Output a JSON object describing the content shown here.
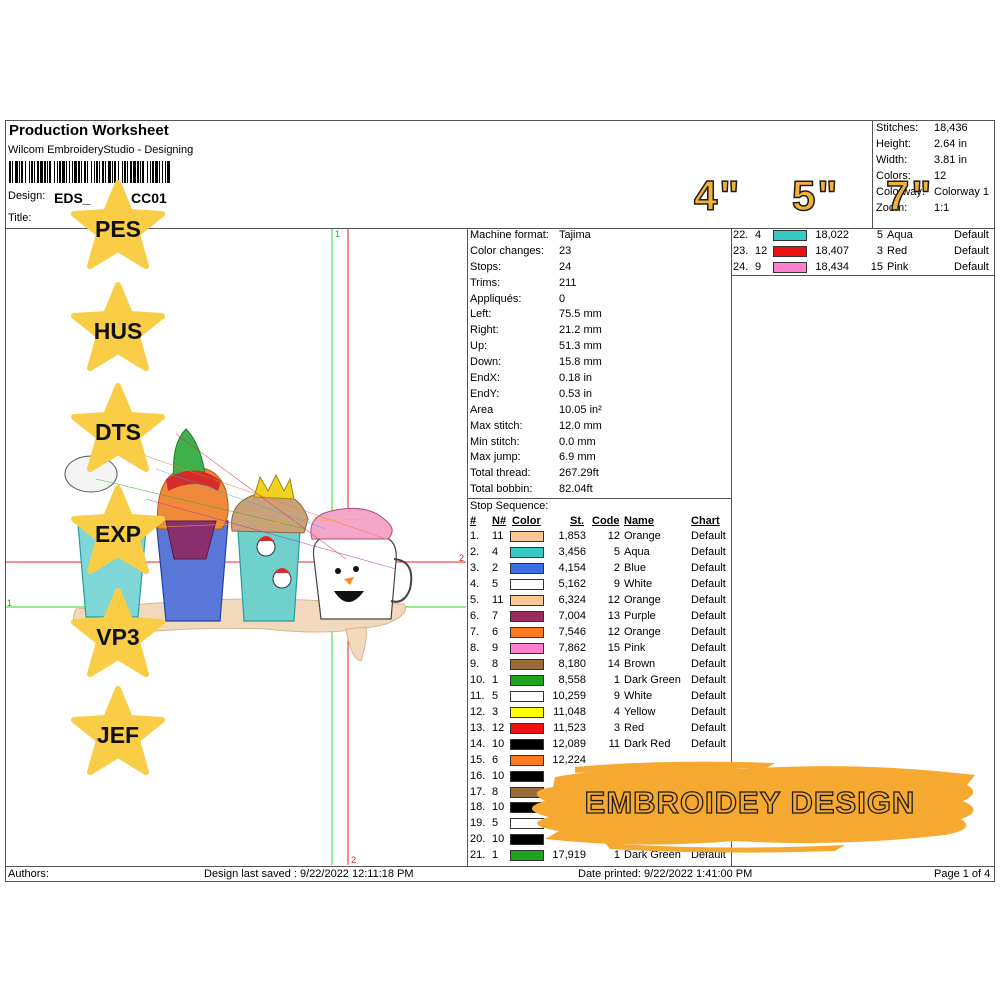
{
  "header": {
    "title": "Production Worksheet",
    "app": "Wilcom EmbroideryStudio - Designing",
    "design_label": "Design:",
    "design_value": "EDS_",
    "design_suffix": "CC01",
    "title_label": "Title:"
  },
  "summary": [
    {
      "label": "Stitches:",
      "value": "18,436"
    },
    {
      "label": "Height:",
      "value": "2.64 in"
    },
    {
      "label": "Width:",
      "value": "3.81 in"
    },
    {
      "label": "Colors:",
      "value": "12"
    },
    {
      "label": "Colorway:",
      "value": "Colorway 1"
    },
    {
      "label": "Zoom:",
      "value": "1:1"
    }
  ],
  "machine_info": [
    {
      "label": "Machine format:",
      "value": "Tajima"
    },
    {
      "label": "Color changes:",
      "value": "23"
    },
    {
      "label": "Stops:",
      "value": "24"
    },
    {
      "label": "Trims:",
      "value": "211"
    },
    {
      "label": "Appliqués:",
      "value": "0"
    },
    {
      "label": "Left:",
      "value": "75.5 mm"
    },
    {
      "label": "Right:",
      "value": "21.2 mm"
    },
    {
      "label": "Up:",
      "value": "51.3 mm"
    },
    {
      "label": "Down:",
      "value": "15.8 mm"
    },
    {
      "label": "EndX:",
      "value": "0.18 in"
    },
    {
      "label": "EndY:",
      "value": "0.53 in"
    },
    {
      "label": "Area",
      "value": "10.05 in²"
    },
    {
      "label": "Max stitch:",
      "value": "12.0 mm"
    },
    {
      "label": "Min stitch:",
      "value": "0.0 mm"
    },
    {
      "label": "Max jump:",
      "value": "6.9 mm"
    },
    {
      "label": "Total thread:",
      "value": "267.29ft"
    },
    {
      "label": "Total bobbin:",
      "value": "82.04ft"
    }
  ],
  "stop_sequence": {
    "title": "Stop Sequence:",
    "headers": [
      "#",
      "N#",
      "Color",
      "St.",
      "Code",
      "Name",
      "Chart"
    ],
    "rows": [
      {
        "num": "1.",
        "n": "11",
        "color": "#f8c795",
        "st": "1,853",
        "code": "12",
        "name": "Orange",
        "chart": "Default"
      },
      {
        "num": "2.",
        "n": "4",
        "color": "#35c9c6",
        "st": "3,456",
        "code": "5",
        "name": "Aqua",
        "chart": "Default"
      },
      {
        "num": "3.",
        "n": "2",
        "color": "#3b6fe8",
        "st": "4,154",
        "code": "2",
        "name": "Blue",
        "chart": "Default"
      },
      {
        "num": "4.",
        "n": "5",
        "color": "#ffffff",
        "st": "5,162",
        "code": "9",
        "name": "White",
        "chart": "Default"
      },
      {
        "num": "5.",
        "n": "11",
        "color": "#f8c795",
        "st": "6,324",
        "code": "12",
        "name": "Orange",
        "chart": "Default"
      },
      {
        "num": "6.",
        "n": "7",
        "color": "#9b2a5e",
        "st": "7,004",
        "code": "13",
        "name": "Purple",
        "chart": "Default"
      },
      {
        "num": "7.",
        "n": "6",
        "color": "#ff7a1c",
        "st": "7,546",
        "code": "12",
        "name": "Orange",
        "chart": "Default"
      },
      {
        "num": "8.",
        "n": "9",
        "color": "#ff7fcc",
        "st": "7,862",
        "code": "15",
        "name": "Pink",
        "chart": "Default"
      },
      {
        "num": "9.",
        "n": "8",
        "color": "#9a6a3a",
        "st": "8,180",
        "code": "14",
        "name": "Brown",
        "chart": "Default"
      },
      {
        "num": "10.",
        "n": "1",
        "color": "#1ea31e",
        "st": "8,558",
        "code": "1",
        "name": "Dark Green",
        "chart": "Default"
      },
      {
        "num": "11.",
        "n": "5",
        "color": "#ffffff",
        "st": "10,259",
        "code": "9",
        "name": "White",
        "chart": "Default"
      },
      {
        "num": "12.",
        "n": "3",
        "color": "#ffff00",
        "st": "11,048",
        "code": "4",
        "name": "Yellow",
        "chart": "Default"
      },
      {
        "num": "13.",
        "n": "12",
        "color": "#ee1111",
        "st": "11,523",
        "code": "3",
        "name": "Red",
        "chart": "Default"
      },
      {
        "num": "14.",
        "n": "10",
        "color": "#000000",
        "st": "12,089",
        "code": "11",
        "name": "Dark Red",
        "chart": "Default"
      },
      {
        "num": "15.",
        "n": "6",
        "color": "#ff7a1c",
        "st": "12,224",
        "code": "",
        "name": "",
        "chart": ""
      },
      {
        "num": "16.",
        "n": "10",
        "color": "#000000",
        "st": "",
        "code": "",
        "name": "",
        "chart": ""
      },
      {
        "num": "17.",
        "n": "8",
        "color": "#9a6a3a",
        "st": "",
        "code": "",
        "name": "",
        "chart": ""
      },
      {
        "num": "18.",
        "n": "10",
        "color": "#000000",
        "st": "",
        "code": "",
        "name": "",
        "chart": ""
      },
      {
        "num": "19.",
        "n": "5",
        "color": "#ffffff",
        "st": "",
        "code": "",
        "name": "",
        "chart": ""
      },
      {
        "num": "20.",
        "n": "10",
        "color": "#000000",
        "st": "",
        "code": "",
        "name": "",
        "chart": ""
      },
      {
        "num": "21.",
        "n": "1",
        "color": "#1ea31e",
        "st": "17,919",
        "code": "1",
        "name": "Dark Green",
        "chart": "Default"
      }
    ],
    "rows_right": [
      {
        "num": "22.",
        "n": "4",
        "color": "#35c9c6",
        "st": "18,022",
        "code": "5",
        "name": "Aqua",
        "chart": "Default"
      },
      {
        "num": "23.",
        "n": "12",
        "color": "#ee1111",
        "st": "18,407",
        "code": "3",
        "name": "Red",
        "chart": "Default"
      },
      {
        "num": "24.",
        "n": "9",
        "color": "#ff7fcc",
        "st": "18,434",
        "code": "15",
        "name": "Pink",
        "chart": "Default"
      }
    ]
  },
  "footer": {
    "authors": "Authors:",
    "saved": "Design last saved : 9/22/2022 12:11:18 PM",
    "printed": "Date printed: 9/22/2022 1:41:00 PM",
    "page": "Page 1 of 4"
  },
  "preview_markers": {
    "top": "1",
    "right": "2",
    "left": "1",
    "bottom": "2"
  },
  "formats": [
    "PES",
    "HUS",
    "DTS",
    "EXP",
    "VP3",
    "JEF"
  ],
  "sizes": [
    "4\"",
    "5\"",
    "7\""
  ],
  "banner": "EMBROIDEY DESIGN",
  "colors": {
    "star": "#f9cd46",
    "banner": "#f6a930"
  }
}
